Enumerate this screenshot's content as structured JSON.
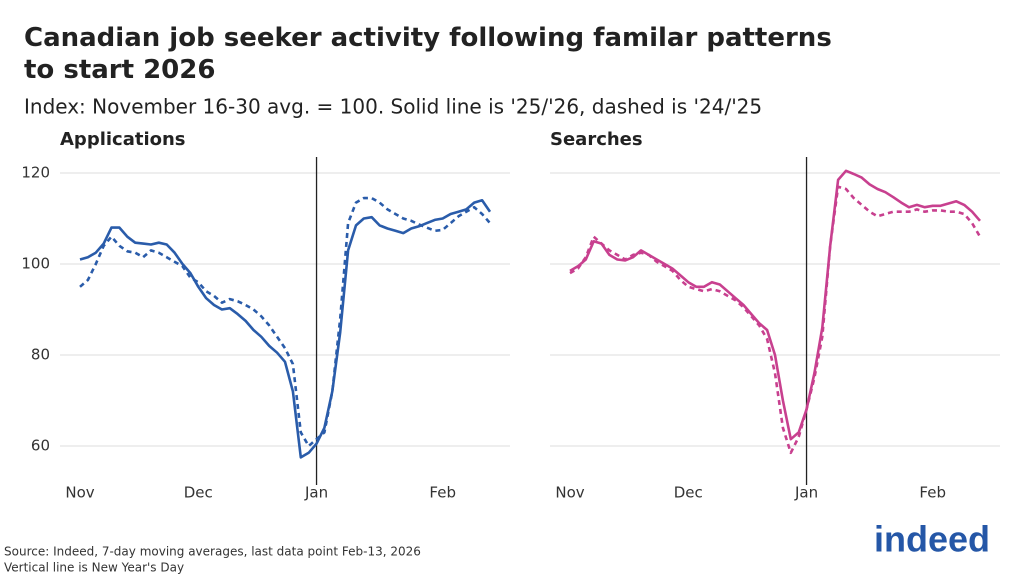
{
  "title": "Canadian job seeker activity following familar patterns to start 2026",
  "subtitle": "Index: November 16-30 avg. = 100. Solid line is '25/'26, dashed is '24/'25",
  "source": "Source: Indeed, 7-day moving averages, last data point Feb-13, 2026",
  "note": "Vertical line is New Year's Day",
  "logo": "indeed",
  "chart_data": [
    {
      "type": "line",
      "title": "Applications",
      "categories": [
        "Nov",
        null,
        null,
        null,
        null,
        null,
        null,
        null,
        null,
        null,
        null,
        null,
        null,
        null,
        null,
        "Dec",
        null,
        null,
        null,
        null,
        null,
        null,
        null,
        null,
        null,
        null,
        null,
        null,
        null,
        null,
        "Jan",
        null,
        null,
        null,
        null,
        null,
        null,
        null,
        null,
        null,
        null,
        null,
        null,
        null,
        null,
        null,
        "Feb",
        null,
        null,
        null,
        null,
        null,
        null
      ],
      "vline": "Jan",
      "ylim": [
        55,
        123
      ],
      "yticks": [
        60,
        80,
        100,
        120
      ],
      "ytick_labels": true,
      "grid": true,
      "series": [
        {
          "color": "#2a5caa",
          "dashed": false,
          "values": [
            101,
            101.5,
            102.5,
            104.5,
            108,
            108,
            106,
            104.7,
            104.5,
            104.3,
            104.7,
            104.3,
            102.5,
            100,
            98,
            95,
            92.5,
            91,
            90,
            90.3,
            89,
            87.5,
            85.5,
            84,
            82,
            80.5,
            78.5,
            72,
            57.5,
            58.5,
            60.5,
            64,
            72,
            85,
            103,
            108.5,
            110,
            110.3,
            108.5,
            107.8,
            107.3,
            106.8,
            107.8,
            108.3,
            109,
            109.7,
            110,
            111,
            111.5,
            112,
            113.5,
            114,
            111.5
          ]
        },
        {
          "color": "#2a5caa",
          "dashed": true,
          "values": [
            95,
            96.5,
            100,
            104,
            106,
            104,
            102.8,
            102.5,
            101.5,
            103,
            102.5,
            101.5,
            100.5,
            99.5,
            97,
            96,
            94,
            93,
            91.5,
            92.3,
            91.8,
            91,
            90,
            88.5,
            86.5,
            84,
            81.5,
            78,
            63,
            60,
            61.5,
            63,
            72,
            88,
            109,
            113.5,
            114.5,
            114.5,
            113.5,
            112,
            111,
            110,
            109.5,
            108.7,
            108,
            107.3,
            107.5,
            109,
            110.5,
            111.5,
            112.5,
            111,
            109
          ]
        }
      ]
    },
    {
      "type": "line",
      "title": "Searches",
      "categories": [
        "Nov",
        null,
        null,
        null,
        null,
        null,
        null,
        null,
        null,
        null,
        null,
        null,
        null,
        null,
        null,
        "Dec",
        null,
        null,
        null,
        null,
        null,
        null,
        null,
        null,
        null,
        null,
        null,
        null,
        null,
        null,
        "Jan",
        null,
        null,
        null,
        null,
        null,
        null,
        null,
        null,
        null,
        null,
        null,
        null,
        null,
        null,
        null,
        "Feb",
        null,
        null,
        null,
        null,
        null,
        null
      ],
      "vline": "Jan",
      "ylim": [
        55,
        123
      ],
      "yticks": [
        60,
        80,
        100,
        120
      ],
      "ytick_labels": false,
      "grid": true,
      "series": [
        {
          "color": "#c8408f",
          "dashed": false,
          "values": [
            98.5,
            99.5,
            101,
            105,
            104.5,
            102,
            101,
            100.8,
            101.5,
            103,
            102,
            101,
            100,
            99,
            97.5,
            96,
            95,
            95,
            96,
            95.5,
            94,
            92.5,
            91,
            89,
            87,
            85.5,
            80,
            70,
            61.5,
            63,
            68,
            76,
            86,
            104,
            118.5,
            120.5,
            119.8,
            119,
            117.5,
            116.5,
            115.8,
            114.7,
            113.5,
            112.5,
            113,
            112.5,
            112.8,
            112.8,
            113.3,
            113.8,
            113,
            111.5,
            109.5
          ]
        },
        {
          "color": "#c8408f",
          "dashed": true,
          "values": [
            98,
            99,
            101.5,
            106,
            104.5,
            103,
            102,
            101,
            102,
            102.5,
            102,
            100.5,
            99.5,
            98.5,
            96.5,
            95,
            94.5,
            94,
            94.5,
            94,
            93,
            92,
            90.5,
            88.5,
            86.5,
            83.5,
            76,
            64,
            58.5,
            62,
            68,
            75,
            84,
            104,
            117,
            116.5,
            114.5,
            113,
            111.5,
            110.5,
            111,
            111.5,
            111.5,
            111.5,
            112,
            111.5,
            111.8,
            111.8,
            111.5,
            111.5,
            111,
            109,
            106
          ]
        }
      ]
    }
  ]
}
